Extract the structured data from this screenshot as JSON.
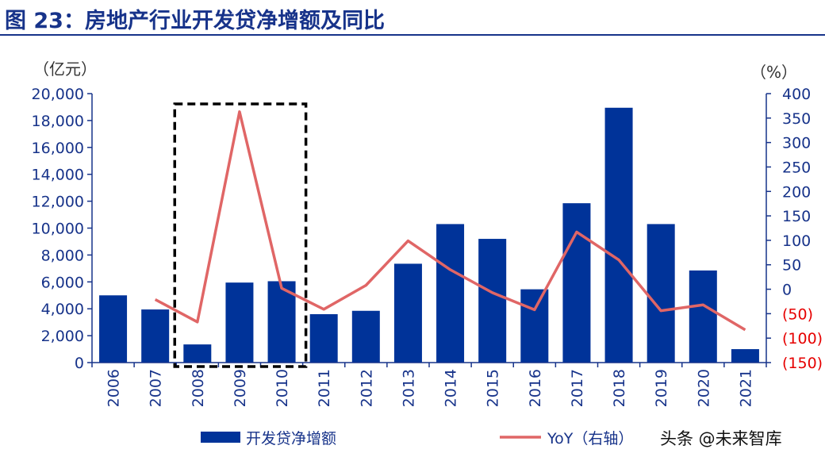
{
  "title": "图 23：房地产行业开发贷净增额及同比",
  "watermark": "头条 @未来智库",
  "colors": {
    "bar": "#003399",
    "line": "#e06666",
    "axis": "#17338a",
    "negative_tick": "#e60000",
    "highlight_box": "#000000"
  },
  "chart_data": {
    "type": "bar+line",
    "categories": [
      "2006",
      "2007",
      "2008",
      "2009",
      "2010",
      "2011",
      "2012",
      "2013",
      "2014",
      "2015",
      "2016",
      "2017",
      "2018",
      "2019",
      "2020",
      "2021"
    ],
    "series": [
      {
        "name": "开发贷净增额",
        "type": "bar",
        "axis": "left",
        "values": [
          5000,
          3950,
          1350,
          5950,
          6050,
          3600,
          3850,
          7350,
          10300,
          9200,
          5450,
          11850,
          18950,
          10300,
          6850,
          1000
        ]
      },
      {
        "name": "YoY（右轴）",
        "type": "line",
        "axis": "right",
        "values": [
          null,
          -21,
          -67,
          363,
          2,
          -41,
          8,
          99,
          40,
          -7,
          -42,
          117,
          60,
          -44,
          -32,
          -83
        ]
      }
    ],
    "left_axis": {
      "unit": "（亿元）",
      "ylim": [
        0,
        20000
      ],
      "ticks": [
        0,
        2000,
        4000,
        6000,
        8000,
        10000,
        12000,
        14000,
        16000,
        18000,
        20000
      ],
      "tick_labels": [
        "0",
        "2,000",
        "4,000",
        "6,000",
        "8,000",
        "10,000",
        "12,000",
        "14,000",
        "16,000",
        "18,000",
        "20,000"
      ]
    },
    "right_axis": {
      "unit": "（%）",
      "ylim": [
        -150,
        400
      ],
      "ticks": [
        400,
        350,
        300,
        250,
        200,
        150,
        100,
        50,
        0,
        -50,
        -100,
        -150
      ],
      "tick_labels": [
        "400",
        "350",
        "300",
        "250",
        "200",
        "150",
        "100",
        "50",
        "0",
        "(50)",
        "(100)",
        "(150)"
      ]
    },
    "highlight": {
      "from": "2008",
      "to": "2010",
      "style": "dashed-box"
    },
    "legend": {
      "position": "bottom"
    },
    "grid": false
  }
}
